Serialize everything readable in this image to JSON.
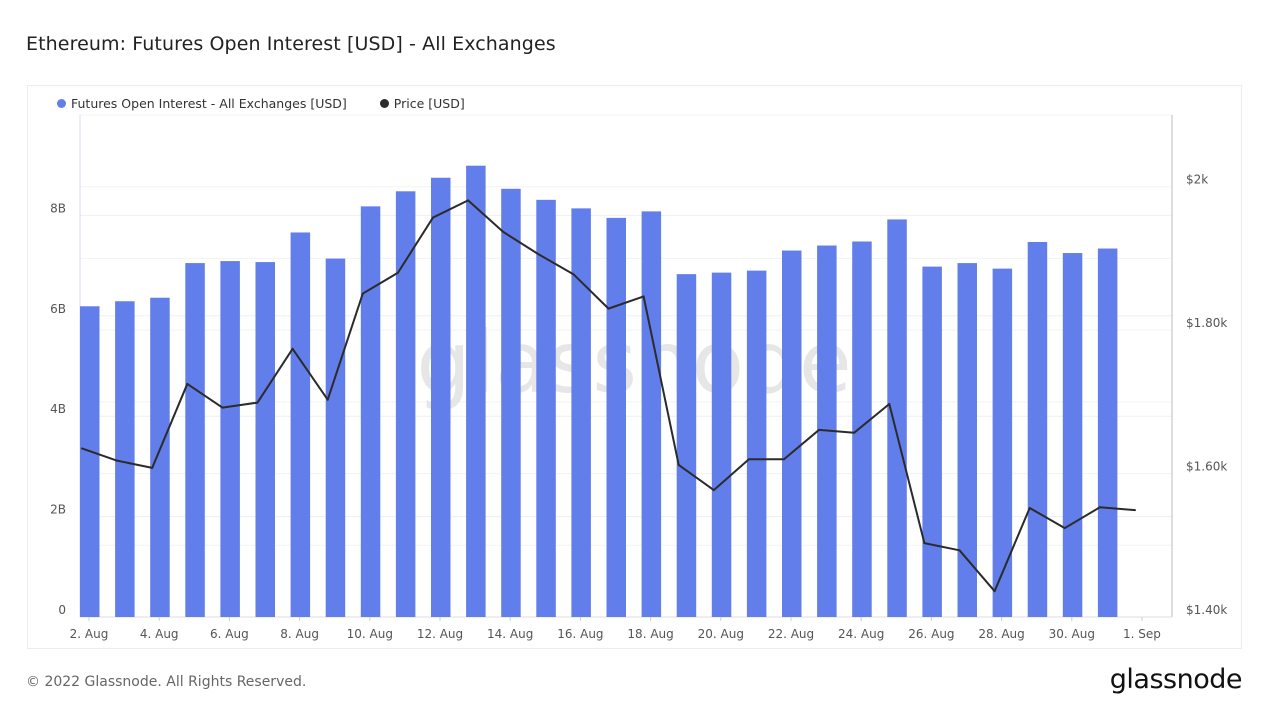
{
  "title": "Ethereum: Futures Open Interest [USD] - All Exchanges",
  "footer": "© 2022 Glassnode. All Rights Reserved.",
  "logo": "glassnode",
  "watermark": "glassnode",
  "colors": {
    "bars": "#627EEA",
    "price": "#2b2b2b"
  },
  "chart_data": {
    "type": "bar+line",
    "legend_position": "top-left",
    "grid": true,
    "series": [
      {
        "name": "Futures Open Interest - All Exchanges [USD]",
        "type": "bar",
        "axis": "left",
        "color": "#627EEA",
        "x": [
          "2. Aug",
          "3. Aug",
          "4. Aug",
          "5. Aug",
          "6. Aug",
          "7. Aug",
          "8. Aug",
          "9. Aug",
          "10. Aug",
          "11. Aug",
          "12. Aug",
          "13. Aug",
          "14. Aug",
          "15. Aug",
          "16. Aug",
          "17. Aug",
          "18. Aug",
          "19. Aug",
          "20. Aug",
          "21. Aug",
          "22. Aug",
          "23. Aug",
          "24. Aug",
          "25. Aug",
          "26. Aug",
          "27. Aug",
          "28. Aug",
          "29. Aug",
          "30. Aug",
          "31. Aug"
        ],
        "values": [
          6.19,
          6.29,
          6.36,
          7.05,
          7.09,
          7.07,
          7.66,
          7.14,
          8.18,
          8.48,
          8.75,
          8.99,
          8.53,
          8.31,
          8.14,
          7.95,
          8.08,
          6.83,
          6.86,
          6.9,
          7.3,
          7.4,
          7.48,
          7.92,
          6.98,
          7.05,
          6.94,
          7.47,
          7.25,
          7.34
        ],
        "unit": "B USD"
      },
      {
        "name": "Price [USD]",
        "type": "line",
        "axis": "right",
        "color": "#2b2b2b",
        "x": [
          "2. Aug",
          "3. Aug",
          "4. Aug",
          "5. Aug",
          "6. Aug",
          "7. Aug",
          "8. Aug",
          "9. Aug",
          "10. Aug",
          "11. Aug",
          "12. Aug",
          "13. Aug",
          "14. Aug",
          "15. Aug",
          "16. Aug",
          "17. Aug",
          "18. Aug",
          "19. Aug",
          "20. Aug",
          "21. Aug",
          "22. Aug",
          "23. Aug",
          "24. Aug",
          "25. Aug",
          "26. Aug",
          "27. Aug",
          "28. Aug",
          "29. Aug",
          "30. Aug",
          "31. Aug",
          "1. Sep"
        ],
        "values": [
          1635,
          1618,
          1608,
          1725,
          1692,
          1699,
          1774,
          1703,
          1851,
          1880,
          1957,
          1981,
          1937,
          1906,
          1878,
          1830,
          1847,
          1612,
          1577,
          1620,
          1620,
          1661,
          1657,
          1697,
          1503,
          1493,
          1436,
          1552,
          1524,
          1553,
          1549
        ]
      }
    ],
    "x_ticks": [
      "2. Aug",
      "4. Aug",
      "6. Aug",
      "8. Aug",
      "10. Aug",
      "12. Aug",
      "14. Aug",
      "16. Aug",
      "18. Aug",
      "20. Aug",
      "22. Aug",
      "24. Aug",
      "26. Aug",
      "28. Aug",
      "30. Aug",
      "1. Sep"
    ],
    "y_left": {
      "ylim": [
        0,
        10
      ],
      "ticks": [
        0,
        2,
        4,
        6,
        8
      ],
      "tick_labels": [
        "0",
        "2B",
        "4B",
        "6B",
        "8B"
      ]
    },
    "y_right": {
      "ylim": [
        1400,
        2100
      ],
      "ticks": [
        1400,
        1600,
        1800,
        2000
      ],
      "tick_labels": [
        "$1.40k",
        "$1.60k",
        "$1.80k",
        "$2k"
      ]
    }
  }
}
